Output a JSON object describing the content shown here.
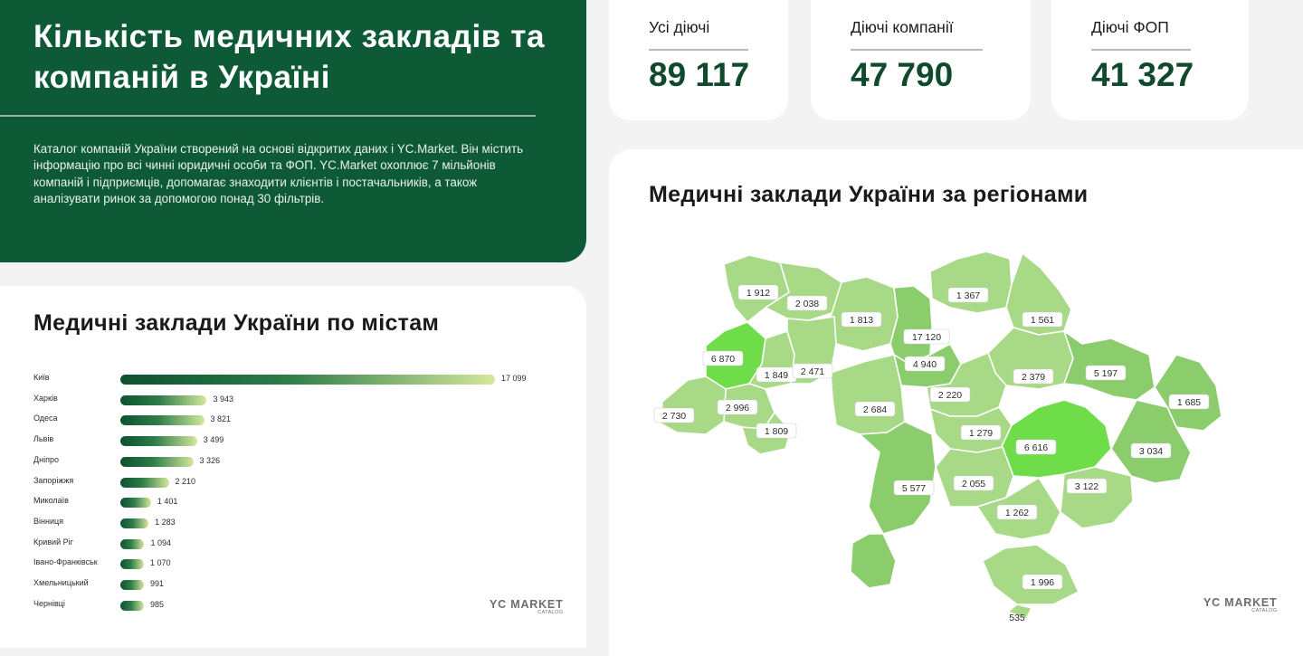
{
  "header": {
    "title": "Кількість медичних закладів та компаній в Україні",
    "description": "Каталог компаній України створений на основі відкритих даних і YC.Market. Він містить інформацію про всі чинні юридичні особи та ФОП. YC.Market охоплює 7 мільйонів компаній і підприємців, допомагає знаходити клієнтів і постачальників, а також аналізувати ринок за допомогою понад 30 фільтрів."
  },
  "stats": [
    {
      "label": "Усі діючі",
      "value": "89 117"
    },
    {
      "label": "Діючі компанії",
      "value": "47 790"
    },
    {
      "label": "Діючі ФОП",
      "value": "41 327"
    }
  ],
  "brand": {
    "name": "YC MARKET",
    "sub": "CATALOG"
  },
  "colors": {
    "dark_green": "#0f5a36",
    "map_light": "#a7d987",
    "map_mid": "#8bcc6c",
    "map_bright": "#6fdc4a"
  },
  "chart_data": [
    {
      "type": "bar",
      "orientation": "horizontal",
      "title": "Медичні заклади України по містам",
      "categories": [
        "Київ",
        "Харків",
        "Одеса",
        "Львів",
        "Дніпро",
        "Запоріжжя",
        "Миколаїв",
        "Вінниця",
        "Кривий Ріг",
        "Івано-Франківськ",
        "Хмельницький",
        "Чернівці"
      ],
      "values": [
        17099,
        3943,
        3821,
        3499,
        3326,
        2210,
        1401,
        1283,
        1094,
        1070,
        991,
        985
      ],
      "value_labels": [
        "17 099",
        "3 943",
        "3 821",
        "3 499",
        "3 326",
        "2 210",
        "1 401",
        "1 283",
        "1 094",
        "1 070",
        "991",
        "985"
      ]
    },
    {
      "type": "choropleth-map",
      "title": "Медичні заклади України за регіонами",
      "values": [
        1912,
        2038,
        1813,
        1367,
        1561,
        17120,
        6870,
        1849,
        2471,
        4940,
        2379,
        5197,
        2996,
        2730,
        2220,
        2684,
        1685,
        1809,
        1279,
        6616,
        3034,
        5577,
        2055,
        3122,
        1262,
        1996,
        535
      ],
      "value_labels": [
        "1 912",
        "2 038",
        "1 813",
        "1 367",
        "1 561",
        "17 120",
        "6 870",
        "1 849",
        "2 471",
        "4 940",
        "2 379",
        "5 197",
        "2 996",
        "2 730",
        "2 220",
        "2 684",
        "1 685",
        "1 809",
        "1 279",
        "6 616",
        "3 034",
        "5 577",
        "2 055",
        "3 122",
        "1 262",
        "1 996",
        "535"
      ]
    }
  ]
}
